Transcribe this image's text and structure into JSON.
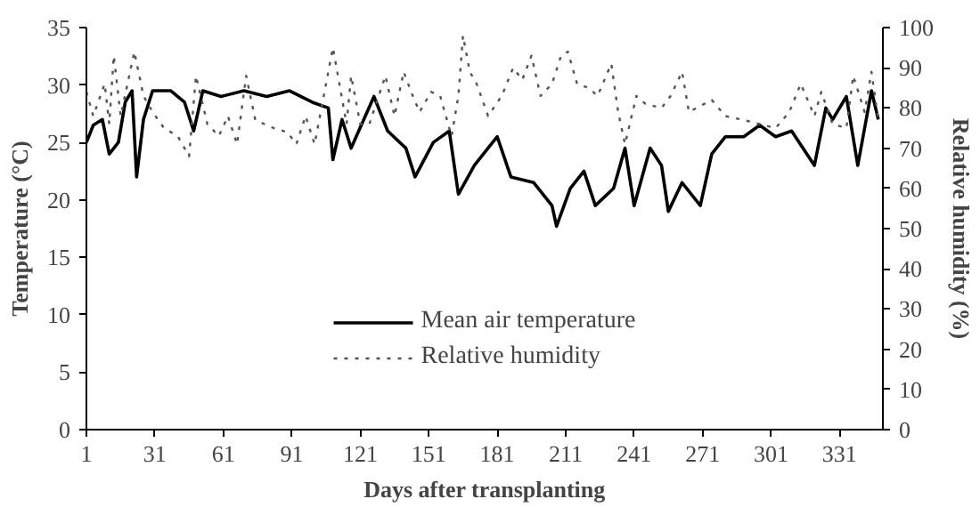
{
  "chart_data": {
    "type": "line",
    "xlabel": "Days after transplanting",
    "ylabel": "Temperature (°C)",
    "y2label": "Relative humidity (%)",
    "xlim": [
      1,
      350
    ],
    "xticks": [
      1,
      31,
      61,
      91,
      121,
      151,
      181,
      211,
      241,
      271,
      301,
      331
    ],
    "ylim": [
      0,
      35
    ],
    "yticks": [
      0,
      5,
      10,
      15,
      20,
      25,
      30,
      35
    ],
    "y2lim": [
      0,
      100
    ],
    "y2ticks": [
      0,
      10,
      20,
      30,
      40,
      50,
      60,
      70,
      80,
      90,
      100
    ],
    "grid": false,
    "legend": "bottom",
    "marker": "none",
    "series": [
      {
        "name": "Mean air temperature",
        "color": "#000000",
        "line_style": "solid",
        "x": [
          1,
          4,
          8,
          11,
          15,
          18,
          21,
          23,
          26,
          30,
          38,
          44,
          48,
          52,
          60,
          70,
          80,
          90,
          100,
          107,
          109,
          113,
          117,
          127,
          133,
          141,
          145,
          153,
          160,
          164,
          171,
          181,
          187,
          197,
          205,
          207,
          213,
          219,
          224,
          232,
          237,
          241,
          248,
          253,
          256,
          262,
          270,
          275,
          281,
          289,
          296,
          303,
          310,
          320,
          325,
          328,
          334,
          339,
          345,
          348
        ],
        "values": [
          25,
          26.5,
          27,
          24,
          25,
          28.5,
          29.5,
          22,
          27,
          29.5,
          29.5,
          28.5,
          26,
          29.5,
          29,
          29.5,
          29,
          29.5,
          28.5,
          28,
          23.5,
          27,
          24.5,
          29,
          26,
          24.5,
          22,
          25,
          26,
          20.5,
          23,
          25.5,
          22,
          21.5,
          19.5,
          17.7,
          21,
          22.5,
          19.5,
          21,
          24.5,
          19.5,
          24.5,
          23,
          19,
          21.5,
          19.5,
          24,
          25.5,
          25.5,
          26.5,
          25.5,
          26,
          23,
          28,
          27,
          29,
          23,
          29.5,
          27
        ]
      },
      {
        "name": "Relative humidity",
        "color": "#555555",
        "line_style": "dotted",
        "axis": "y2",
        "x": [
          1,
          4,
          9,
          11,
          13,
          16,
          22,
          26,
          30,
          35,
          41,
          46,
          49,
          54,
          59,
          63,
          67,
          71,
          75,
          83,
          89,
          93,
          97,
          101,
          109,
          115,
          117,
          121,
          125,
          132,
          136,
          140,
          144,
          147,
          152,
          156,
          161,
          164,
          166,
          169,
          172,
          177,
          183,
          188,
          192,
          196,
          200,
          205,
          209,
          212,
          216,
          221,
          225,
          231,
          234,
          237,
          242,
          246,
          253,
          257,
          262,
          265,
          275,
          281,
          289,
          296,
          303,
          309,
          314,
          320,
          323,
          328,
          334,
          337,
          342,
          345,
          348
        ],
        "values": [
          84,
          78,
          86,
          76,
          93,
          78,
          94,
          83,
          79,
          75,
          73,
          68,
          88,
          76,
          73,
          78,
          71,
          88,
          77,
          75,
          74,
          71,
          78,
          71,
          95,
          76,
          88,
          76,
          76,
          88,
          78,
          89,
          83,
          79,
          84,
          83,
          73,
          83,
          98,
          89,
          86,
          78,
          83,
          90,
          87,
          93,
          83,
          86,
          93,
          94,
          86,
          85,
          83,
          91,
          79,
          71,
          83,
          81,
          80,
          83,
          89,
          79,
          82,
          78,
          77,
          76,
          75,
          79,
          86,
          78,
          84,
          76,
          75,
          88,
          79,
          89,
          77
        ]
      }
    ]
  }
}
